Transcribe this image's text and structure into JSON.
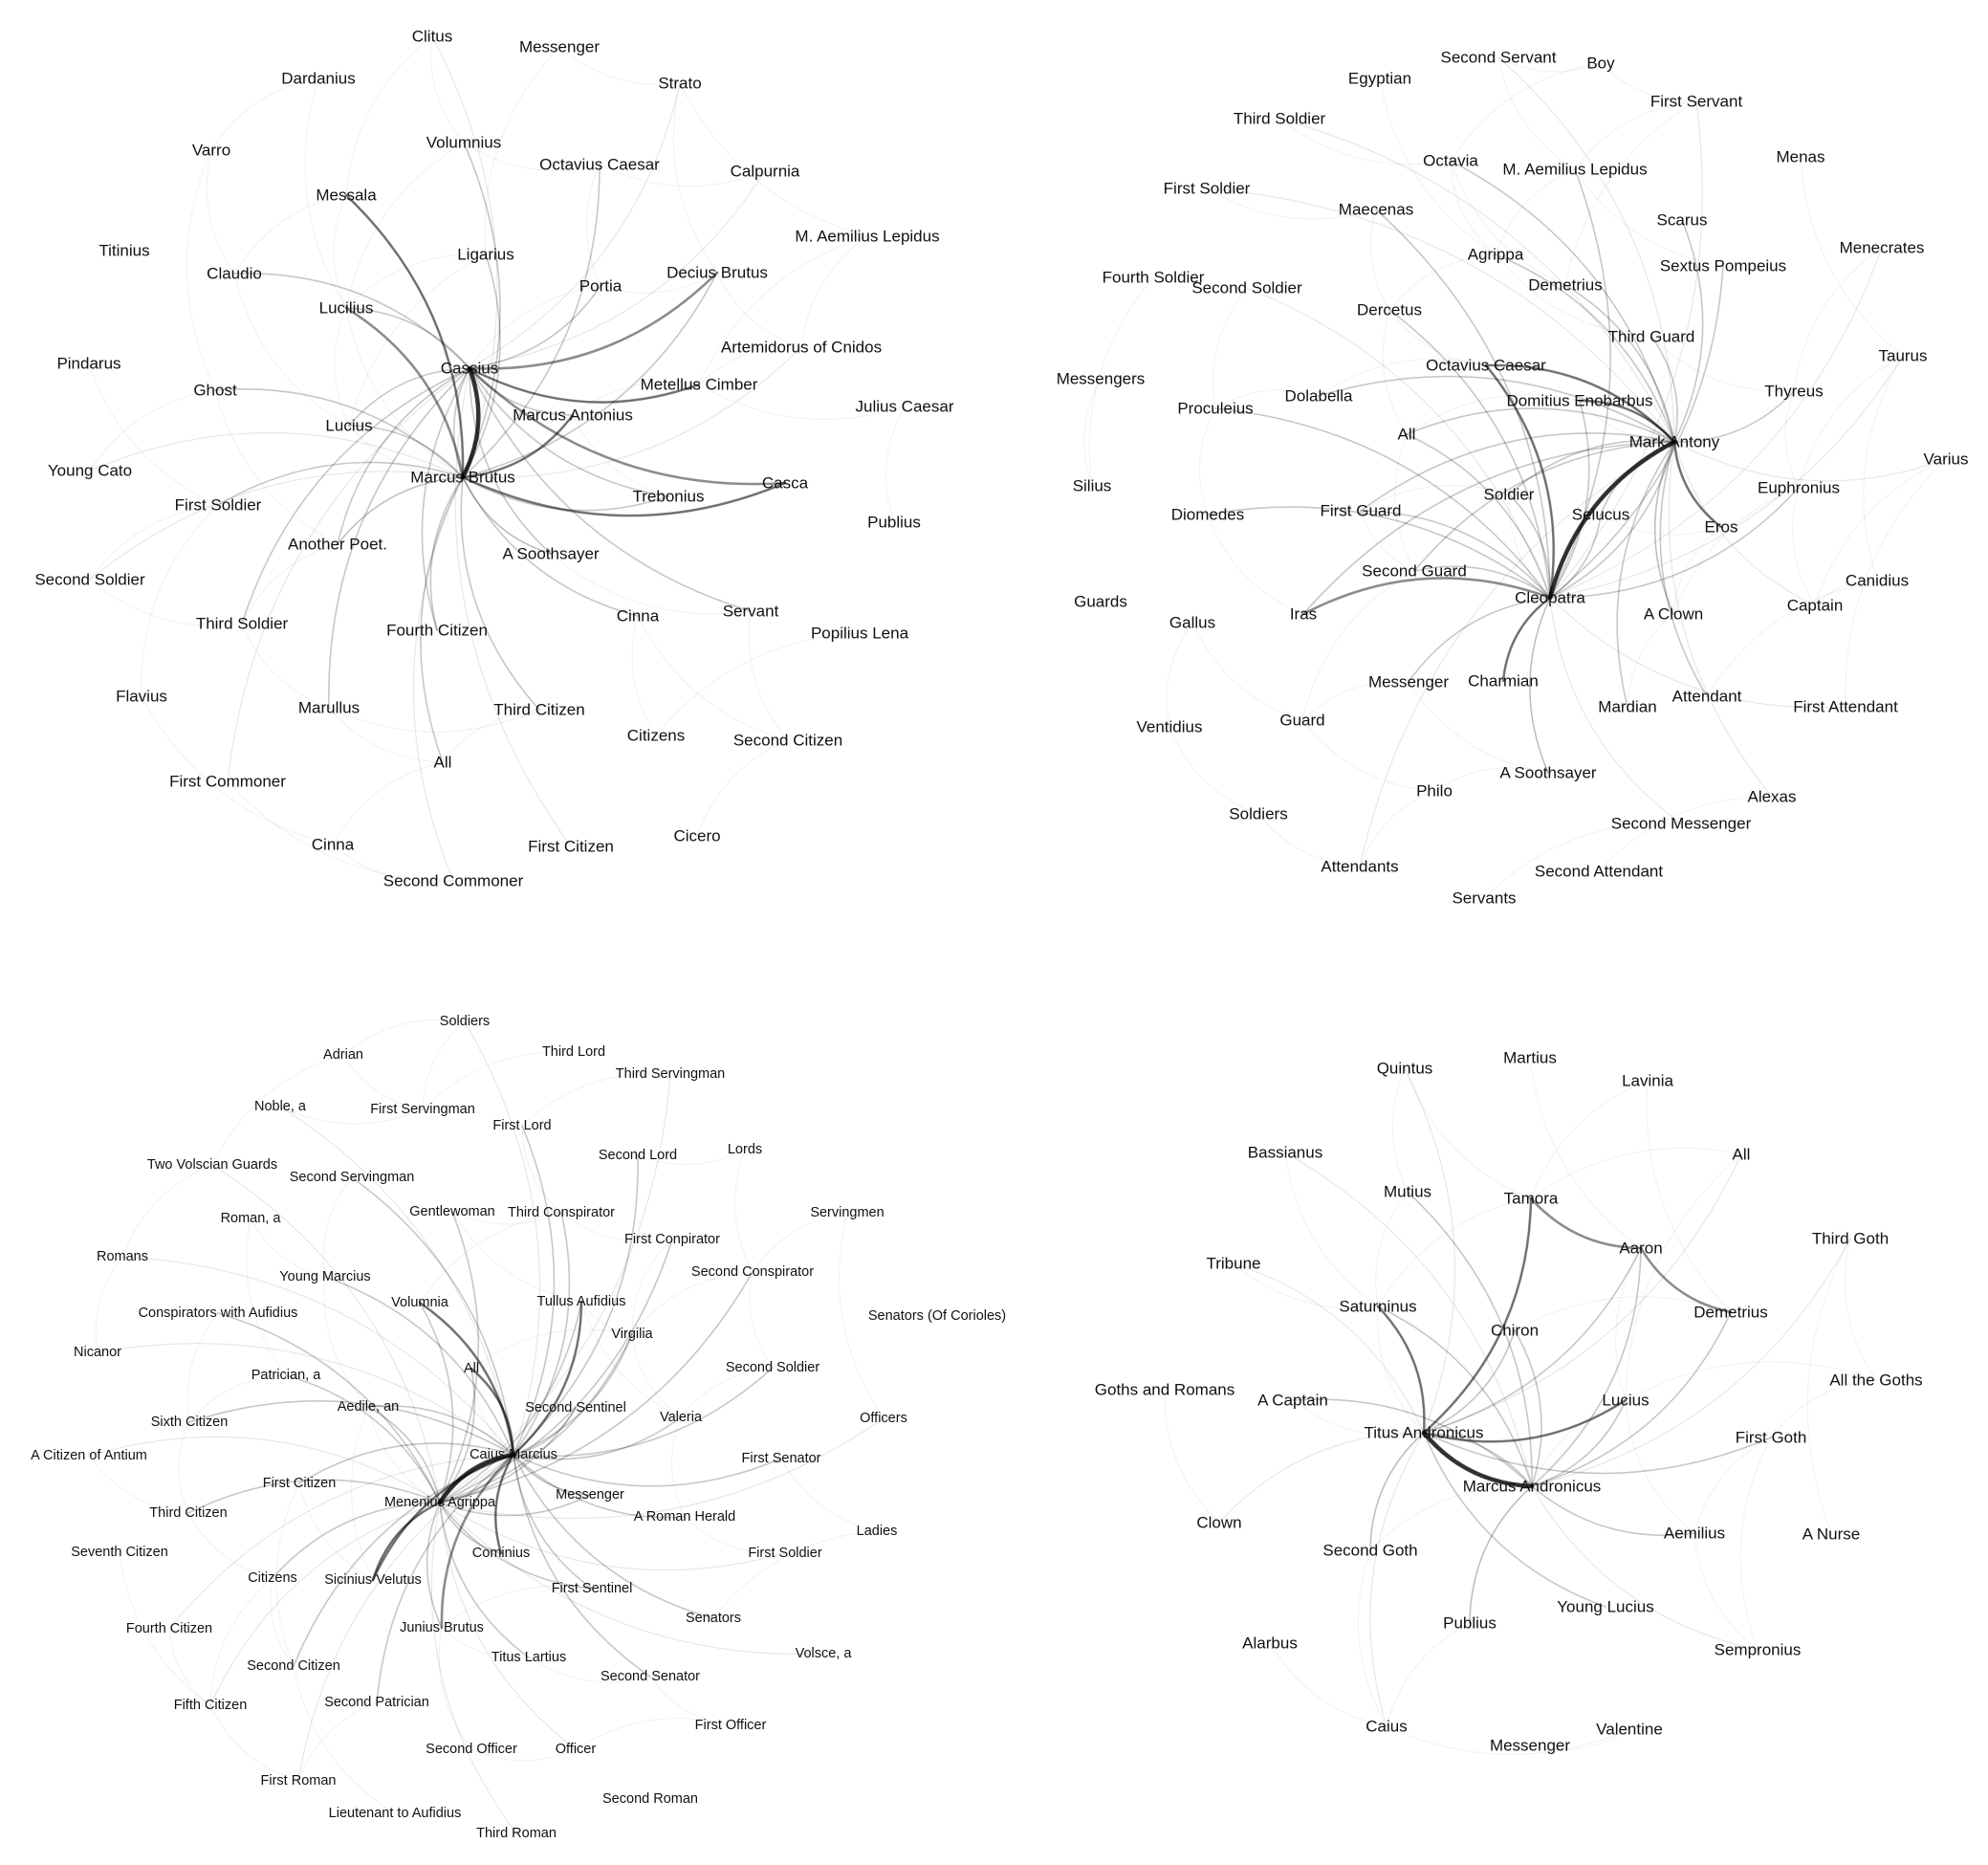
{
  "networks": [
    {
      "id": "julius-caesar",
      "characters": [
        "Clitus",
        "Messenger",
        "Dardanius",
        "Strato",
        "Volumnius",
        "Varro",
        "Octavius Caesar",
        "Calpurnia",
        "Messala",
        "M. Aemilius Lepidus",
        "Titinius",
        "Claudio",
        "Ligarius",
        "Portia",
        "Decius Brutus",
        "Lucilius",
        "Artemidorus of Cnidos",
        "Pindarus",
        "Cassius",
        "Metellus Cimber",
        "Ghost",
        "Julius Caesar",
        "Marcus Antonius",
        "Lucius",
        "Young Cato",
        "Marcus Brutus",
        "Casca",
        "Trebonius",
        "First Soldier",
        "Publius",
        "Another Poet.",
        "A Soothsayer",
        "Second Soldier",
        "Third Soldier",
        "Cinna",
        "Servant",
        "Fourth Citizen",
        "Popilius Lena",
        "Flavius",
        "Marullus",
        "Third Citizen",
        "Second Citizen",
        "Citizens",
        "First Commoner",
        "All",
        "Cicero",
        "Cinna",
        "First Citizen",
        "Second Commoner"
      ],
      "hubs": [
        "Marcus Brutus",
        "Cassius"
      ],
      "strong_pairs": [
        [
          "Marcus Brutus",
          "Cassius"
        ],
        [
          "Marcus Brutus",
          "Lucilius"
        ],
        [
          "Marcus Brutus",
          "Messala"
        ],
        [
          "Cassius",
          "Casca"
        ],
        [
          "Cassius",
          "Metellus Cimber"
        ],
        [
          "Marcus Brutus",
          "Marcus Antonius"
        ],
        [
          "Marcus Brutus",
          "Casca"
        ],
        [
          "Cassius",
          "Decius Brutus"
        ]
      ]
    },
    {
      "id": "antony-and-cleopatra",
      "characters": [
        "Second Servant",
        "Boy",
        "Egyptian",
        "First Servant",
        "Third Soldier",
        "Menas",
        "Octavia",
        "M. Aemilius Lepidus",
        "First Soldier",
        "Maecenas",
        "Scarus",
        "Menecrates",
        "Agrippa",
        "Sextus Pompeius",
        "Fourth Soldier",
        "Second Soldier",
        "Demetrius",
        "Dercetus",
        "Third Guard",
        "Taurus",
        "Octavius Caesar",
        "Messengers",
        "Dolabella",
        "Domitius Enobarbus",
        "Thyreus",
        "Proculeius",
        "All",
        "Mark Antony",
        "Varius",
        "Silius",
        "Soldier",
        "Euphronius",
        "First Guard",
        "Selucus",
        "Eros",
        "Diomedes",
        "Second Guard",
        "Canidius",
        "Guards",
        "Cleopatra",
        "Captain",
        "Gallus",
        "A Clown",
        "Messenger",
        "Iras",
        "Charmian",
        "Attendant",
        "First Attendant",
        "Mardian",
        "Ventidius",
        "Guard",
        "A Soothsayer",
        "Alexas",
        "Philo",
        "Soldiers",
        "Second Messenger",
        "Attendants",
        "Second Attendant",
        "Servants"
      ],
      "hubs": [
        "Mark Antony",
        "Cleopatra"
      ],
      "strong_pairs": [
        [
          "Mark Antony",
          "Cleopatra"
        ],
        [
          "Cleopatra",
          "Charmian"
        ],
        [
          "Cleopatra",
          "Iras"
        ],
        [
          "Mark Antony",
          "Domitius Enobarbus"
        ],
        [
          "Mark Antony",
          "Octavius Caesar"
        ],
        [
          "Cleopatra",
          "Octavius Caesar"
        ],
        [
          "Mark Antony",
          "Eros"
        ]
      ]
    },
    {
      "id": "coriolanus",
      "characters": [
        "Soldiers",
        "Adrian",
        "Third Lord",
        "Third Servingman",
        "Noble, a",
        "First Servingman",
        "First Lord",
        "Two Volscian Guards",
        "Second Lord",
        "Lords",
        "Second Servingman",
        "Gentlewoman",
        "Third Conspirator",
        "Servingmen",
        "Roman, a",
        "First Conpirator",
        "Romans",
        "Second Conspirator",
        "Young Marcius",
        "Conspirators with Aufidius",
        "Volumnia",
        "Tullus Aufidius",
        "Senators (Of Corioles)",
        "Virgilia",
        "Nicanor",
        "All",
        "Second Soldier",
        "Patrician, a",
        "Aedile, an",
        "Second Sentinel",
        "Valeria",
        "Officers",
        "Sixth Citizen",
        "Caius Marcius",
        "First Senator",
        "A Citizen of Antium",
        "First Citizen",
        "Messenger",
        "Menenius Agrippa",
        "Third Citizen",
        "A Roman Herald",
        "Ladies",
        "Seventh Citizen",
        "First Soldier",
        "Cominius",
        "Citizens",
        "Sicinius Velutus",
        "First Sentinel",
        "Fourth Citizen",
        "Junius Brutus",
        "Senators",
        "Volsce, a",
        "Second Citizen",
        "Titus Lartius",
        "Second Senator",
        "Fifth Citizen",
        "Second Patrician",
        "First Officer",
        "Second Officer",
        "Officer",
        "First Roman",
        "Second Roman",
        "Lieutenant to Aufidius",
        "Third Roman"
      ],
      "hubs": [
        "Caius Marcius",
        "Menenius Agrippa"
      ],
      "strong_pairs": [
        [
          "Caius Marcius",
          "Menenius Agrippa"
        ],
        [
          "Caius Marcius",
          "Cominius"
        ],
        [
          "Caius Marcius",
          "All"
        ],
        [
          "Caius Marcius",
          "Volumnia"
        ],
        [
          "Caius Marcius",
          "Sicinius Velutus"
        ],
        [
          "Caius Marcius",
          "Junius Brutus"
        ],
        [
          "Menenius Agrippa",
          "Sicinius Velutus"
        ],
        [
          "Caius Marcius",
          "Tullus Aufidius"
        ]
      ]
    },
    {
      "id": "titus-andronicus",
      "characters": [
        "Quintus",
        "Martius",
        "Lavinia",
        "Bassianus",
        "All",
        "Mutius",
        "Tamora",
        "Third Goth",
        "Tribune",
        "Aaron",
        "Saturninus",
        "Demetrius",
        "Chiron",
        "All the Goths",
        "Goths and Romans",
        "A Captain",
        "Lucius",
        "Titus Andronicus",
        "First Goth",
        "Marcus Andronicus",
        "Clown",
        "A Nurse",
        "Second Goth",
        "Aemilius",
        "Young Lucius",
        "Publius",
        "Alarbus",
        "Sempronius",
        "Caius",
        "Messenger",
        "Valentine"
      ],
      "hubs": [
        "Titus Andronicus",
        "Marcus Andronicus"
      ],
      "strong_pairs": [
        [
          "Titus Andronicus",
          "Marcus Andronicus"
        ],
        [
          "Titus Andronicus",
          "Tamora"
        ],
        [
          "Titus Andronicus",
          "Lucius"
        ],
        [
          "Tamora",
          "Aaron"
        ],
        [
          "Aaron",
          "Demetrius"
        ],
        [
          "Titus Andronicus",
          "Saturninus"
        ]
      ]
    }
  ]
}
